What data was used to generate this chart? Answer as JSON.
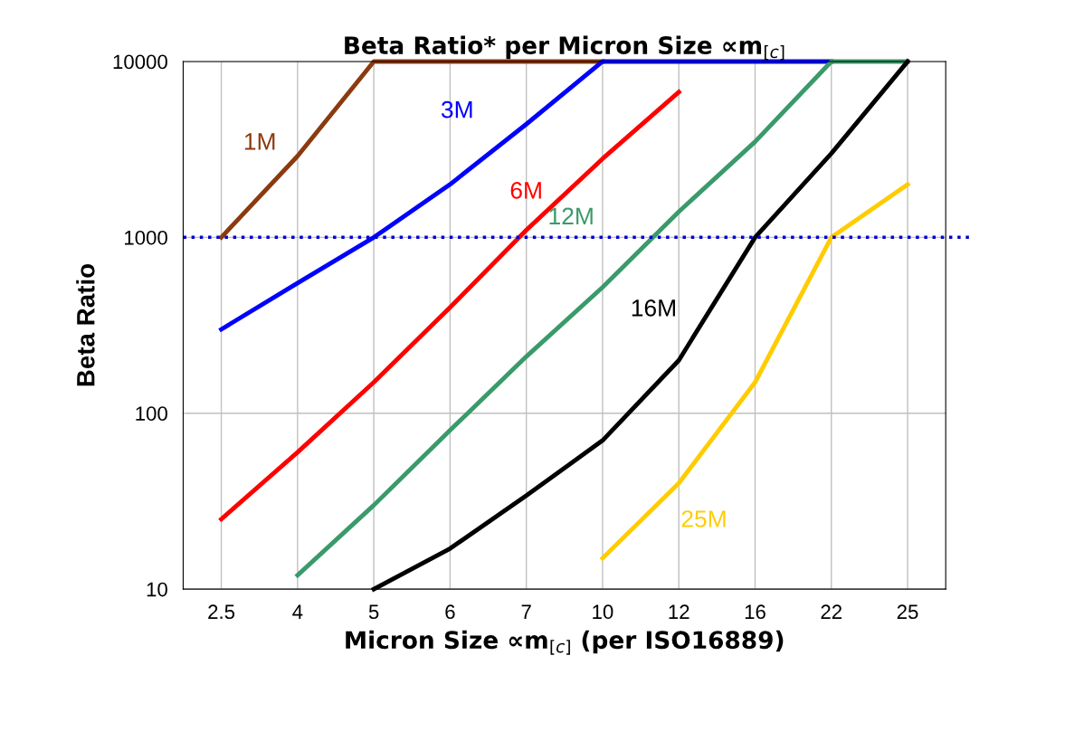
{
  "chart_data": {
    "type": "line",
    "title": "Beta Ratio* per Micron Size ∝m$_{[c]}$",
    "xlabel": "Micron Size ∝m$_{[c]}$ (per ISO16889)",
    "ylabel": "Beta Ratio",
    "categories": [
      "2.5",
      "4",
      "5",
      "6",
      "7",
      "10",
      "12",
      "16",
      "22",
      "25"
    ],
    "series": [
      {
        "name": "1M",
        "color": "#8b3a0f",
        "values": [
          1000,
          2900,
          10000,
          10000,
          10000,
          10000,
          null,
          null,
          null,
          null
        ]
      },
      {
        "name": "3M",
        "color": "#0000ff",
        "values": [
          300,
          550,
          1000,
          2000,
          4400,
          10000,
          10000,
          10000,
          10000,
          null
        ]
      },
      {
        "name": "6M",
        "color": "#ff0000",
        "values": [
          25,
          60,
          150,
          400,
          1100,
          2800,
          6700,
          null,
          null,
          null
        ]
      },
      {
        "name": "12M",
        "color": "#3a9a6a",
        "values": [
          null,
          12,
          30,
          80,
          210,
          520,
          1400,
          3500,
          10000,
          10000
        ]
      },
      {
        "name": "16M",
        "color": "#000000",
        "values": [
          null,
          null,
          10,
          17,
          34,
          70,
          200,
          1000,
          3000,
          10000
        ]
      },
      {
        "name": "25M",
        "color": "#ffcc00",
        "values": [
          null,
          null,
          null,
          null,
          null,
          15,
          40,
          150,
          1000,
          2000
        ]
      }
    ],
    "ylim": [
      10,
      10000
    ],
    "yticks": [
      10,
      100,
      1000,
      10000
    ],
    "log": "y",
    "grid": true,
    "ref_lines": [
      {
        "axis": "y",
        "value": 1000,
        "color": "#0000cc",
        "line_style": "dotted"
      }
    ]
  }
}
